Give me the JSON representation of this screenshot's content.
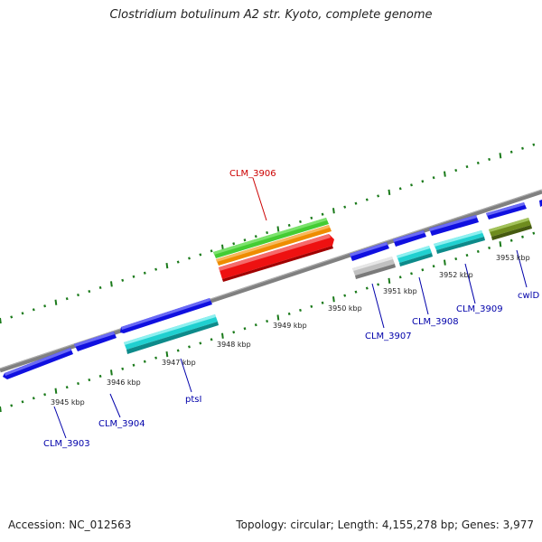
{
  "title": "Clostridium botulinum A2 str. Kyoto, complete genome",
  "footer": {
    "accession": "Accession: NC_012563",
    "summary": "Topology: circular; Length: 4,155,278 bp; Genes: 3,977"
  },
  "kbp_labels": [
    "3945 kbp",
    "3946 kbp",
    "3947 kbp",
    "3948 kbp",
    "3949 kbp",
    "3950 kbp",
    "3951 kbp",
    "3952 kbp",
    "3953 kbp"
  ],
  "gene_labels": [
    {
      "text": "CLM_3906",
      "color": "#cc0000"
    },
    {
      "text": "CLM_3903",
      "color": "#0000aa"
    },
    {
      "text": "CLM_3904",
      "color": "#0000aa"
    },
    {
      "text": "ptsI",
      "color": "#0000aa"
    },
    {
      "text": "CLM_3907",
      "color": "#0000aa"
    },
    {
      "text": "CLM_3908",
      "color": "#0000aa"
    },
    {
      "text": "CLM_3909",
      "color": "#0000aa"
    },
    {
      "text": "cwlD",
      "color": "#0000aa"
    }
  ],
  "colors": {
    "backbone": "#808080",
    "tick": "#1a7a1a",
    "forward_gene": "#1010e0",
    "cds_cyan": "#20d0d0",
    "highlight_red": "#ee1111",
    "highlight_orange": "#ee8c00",
    "highlight_green": "#44cc33",
    "grey_gene": "#c0c0c0",
    "olive_gene": "#6e8c1e"
  }
}
